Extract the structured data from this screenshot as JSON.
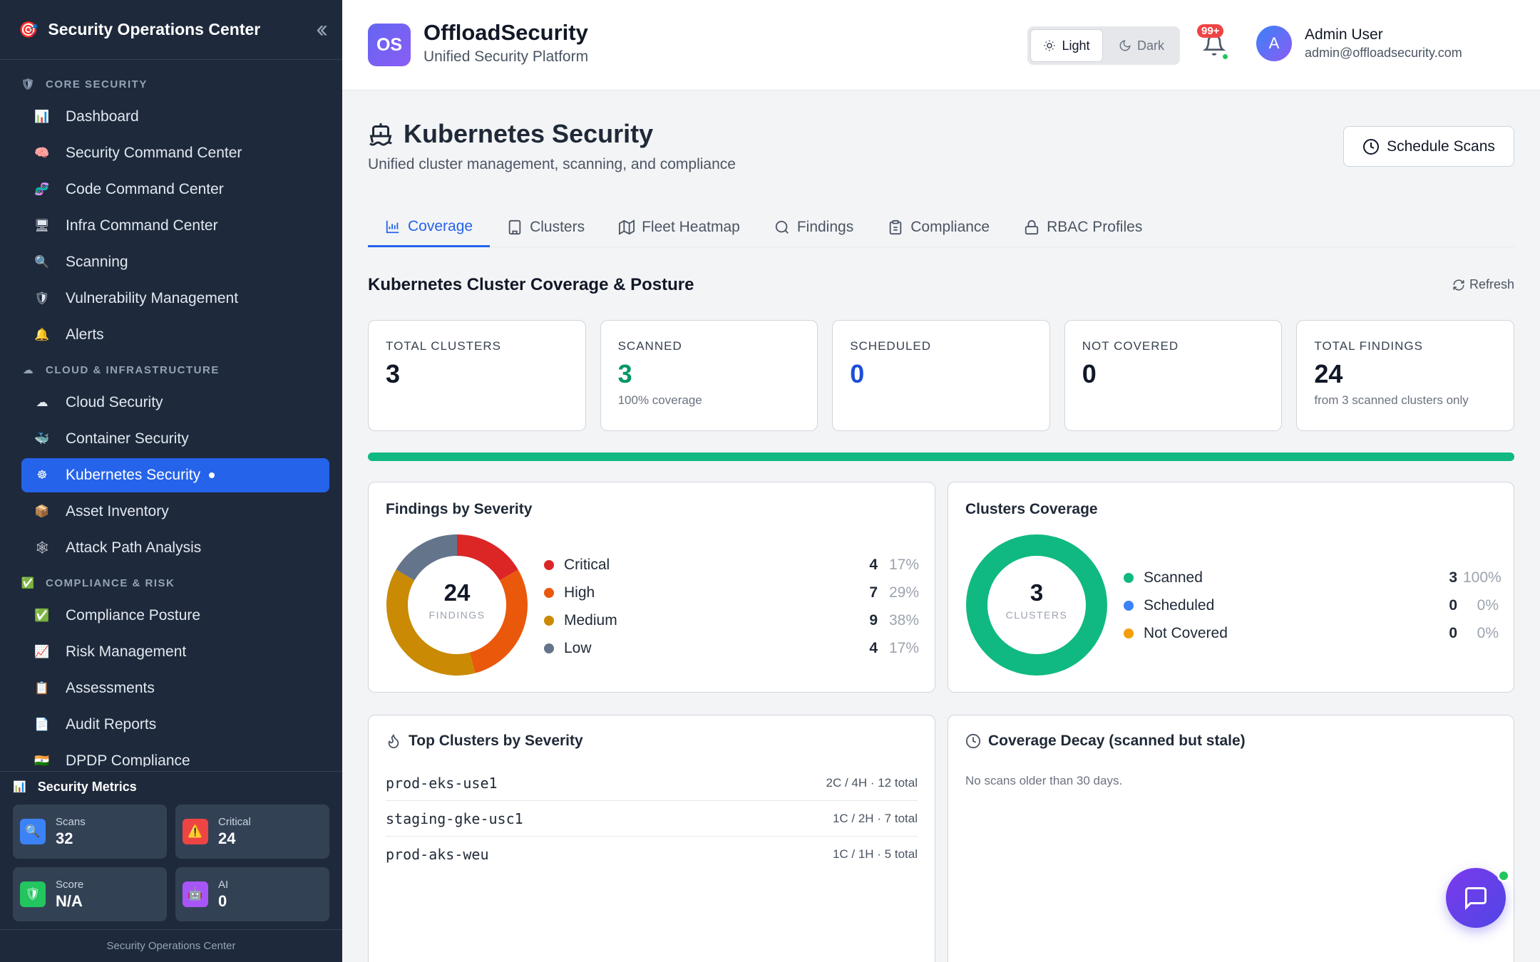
{
  "sidebar": {
    "title": "Security Operations Center",
    "sections": [
      {
        "label": "CORE SECURITY",
        "items": [
          "Dashboard",
          "Security Command Center",
          "Code Command Center",
          "Infra Command Center",
          "Scanning",
          "Vulnerability Management",
          "Alerts"
        ]
      },
      {
        "label": "CLOUD & INFRASTRUCTURE",
        "items": [
          "Cloud Security",
          "Container Security",
          "Kubernetes Security",
          "Asset Inventory",
          "Attack Path Analysis"
        ]
      },
      {
        "label": "COMPLIANCE & RISK",
        "items": [
          "Compliance Posture",
          "Risk Management",
          "Assessments",
          "Audit Reports",
          "DPDP Compliance"
        ]
      }
    ],
    "active_item": "Kubernetes Security",
    "metrics": {
      "title": "Security Metrics",
      "scans": {
        "label": "Scans",
        "value": "32"
      },
      "critical": {
        "label": "Critical",
        "value": "24"
      },
      "score": {
        "label": "Score",
        "value": "N/A"
      },
      "ai": {
        "label": "AI",
        "value": "0"
      }
    },
    "footer": "Security Operations Center"
  },
  "topbar": {
    "logo": "OS",
    "brand": "OffloadSecurity",
    "tagline": "Unified Security Platform",
    "theme_light": "Light",
    "theme_dark": "Dark",
    "notifications": "99+",
    "avatar": "A",
    "user_name": "Admin User",
    "user_email": "admin@offloadsecurity.com"
  },
  "page": {
    "title": "Kubernetes Security",
    "subtitle": "Unified cluster management, scanning, and compliance",
    "schedule_button": "Schedule Scans",
    "tabs": [
      "Coverage",
      "Clusters",
      "Fleet Heatmap",
      "Findings",
      "Compliance",
      "RBAC Profiles"
    ],
    "active_tab": "Coverage",
    "section_title": "Kubernetes Cluster Coverage & Posture",
    "refresh": "Refresh",
    "coverage_fraction": 1.0
  },
  "stats": [
    {
      "label": "TOTAL CLUSTERS",
      "value": "3",
      "note": "",
      "color": "#111827"
    },
    {
      "label": "SCANNED",
      "value": "3",
      "note": "100% coverage",
      "color": "#059669"
    },
    {
      "label": "SCHEDULED",
      "value": "0",
      "note": "",
      "color": "#1d4ed8"
    },
    {
      "label": "NOT COVERED",
      "value": "0",
      "note": "",
      "color": "#111827"
    },
    {
      "label": "TOTAL FINDINGS",
      "value": "24",
      "note": "from 3 scanned clusters only",
      "color": "#111827"
    }
  ],
  "findings_panel": {
    "title": "Findings by Severity",
    "center_value": "24",
    "center_label": "FINDINGS",
    "rows": [
      {
        "name": "Critical",
        "count": 4,
        "pct": "17%",
        "color": "#dc2626"
      },
      {
        "name": "High",
        "count": 7,
        "pct": "29%",
        "color": "#ea580c"
      },
      {
        "name": "Medium",
        "count": 9,
        "pct": "38%",
        "color": "#ca8a04"
      },
      {
        "name": "Low",
        "count": 4,
        "pct": "17%",
        "color": "#64748b"
      }
    ]
  },
  "coverage_panel": {
    "title": "Clusters Coverage",
    "center_value": "3",
    "center_label": "CLUSTERS",
    "rows": [
      {
        "name": "Scanned",
        "count": 3,
        "pct": "100%",
        "color": "#10b981"
      },
      {
        "name": "Scheduled",
        "count": 0,
        "pct": "0%",
        "color": "#3b82f6"
      },
      {
        "name": "Not Covered",
        "count": 0,
        "pct": "0%",
        "color": "#f59e0b"
      }
    ]
  },
  "top_clusters": {
    "title": "Top Clusters by Severity",
    "rows": [
      {
        "name": "prod-eks-use1",
        "summary": "2C / 4H · 12 total"
      },
      {
        "name": "staging-gke-usc1",
        "summary": "1C / 2H · 7 total"
      },
      {
        "name": "prod-aks-weu",
        "summary": "1C / 1H · 5 total"
      }
    ]
  },
  "decay": {
    "title": "Coverage Decay (scanned but stale)",
    "message": "No scans older than 30 days."
  }
}
